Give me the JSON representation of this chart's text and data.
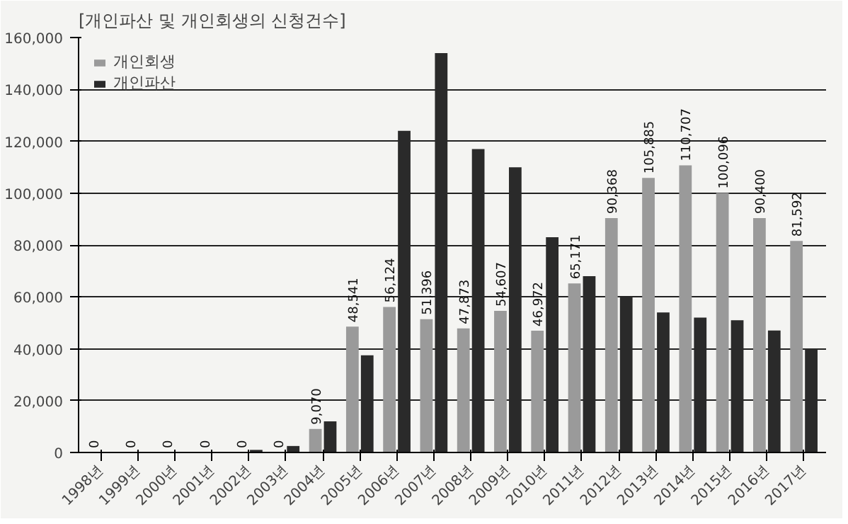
{
  "chart_data": {
    "type": "bar",
    "title": "[개인파산 및 개인회생의 신청건수]",
    "categories": [
      "1998년",
      "1999년",
      "2000년",
      "2001년",
      "2002년",
      "2003년",
      "2004년",
      "2005년",
      "2006년",
      "2007년",
      "2008년",
      "2009년",
      "2010년",
      "2011년",
      "2012년",
      "2013년",
      "2014년",
      "2015년",
      "2016년",
      "2017년"
    ],
    "series": [
      {
        "name": "개인회생",
        "color": "#9a9a9a",
        "values": [
          0,
          0,
          0,
          0,
          0,
          0,
          9070,
          48541,
          56124,
          51396,
          47873,
          54607,
          46972,
          65171,
          90368,
          105885,
          110707,
          100096,
          90400,
          81592
        ],
        "value_labels": [
          "0",
          "0",
          "0",
          "0",
          "0",
          "0",
          "9,070",
          "48,541",
          "56,124",
          "51,396",
          "47,873",
          "54,607",
          "46,972",
          "65,171",
          "90,368",
          "105,885",
          "110,707",
          "100,096",
          "90,400",
          "81,592"
        ]
      },
      {
        "name": "개인파산",
        "color": "#2a2a2a",
        "values": [
          null,
          null,
          null,
          null,
          1000,
          2500,
          12000,
          37500,
          124000,
          154000,
          117000,
          110000,
          83000,
          68000,
          60000,
          54000,
          52000,
          51000,
          47000,
          40000
        ]
      }
    ],
    "ylim": [
      0,
      160000
    ],
    "yticks": [
      {
        "value": 0,
        "label": "0"
      },
      {
        "value": 20000,
        "label": "20,000"
      },
      {
        "value": 40000,
        "label": "40,000"
      },
      {
        "value": 60000,
        "label": "60,000"
      },
      {
        "value": 80000,
        "label": "80,000"
      },
      {
        "value": 100000,
        "label": "100,000"
      },
      {
        "value": 120000,
        "label": "120,000"
      },
      {
        "value": 140000,
        "label": "140,000"
      },
      {
        "value": 160000,
        "label": "160,000"
      }
    ],
    "grid": "y",
    "legend": "top left"
  }
}
